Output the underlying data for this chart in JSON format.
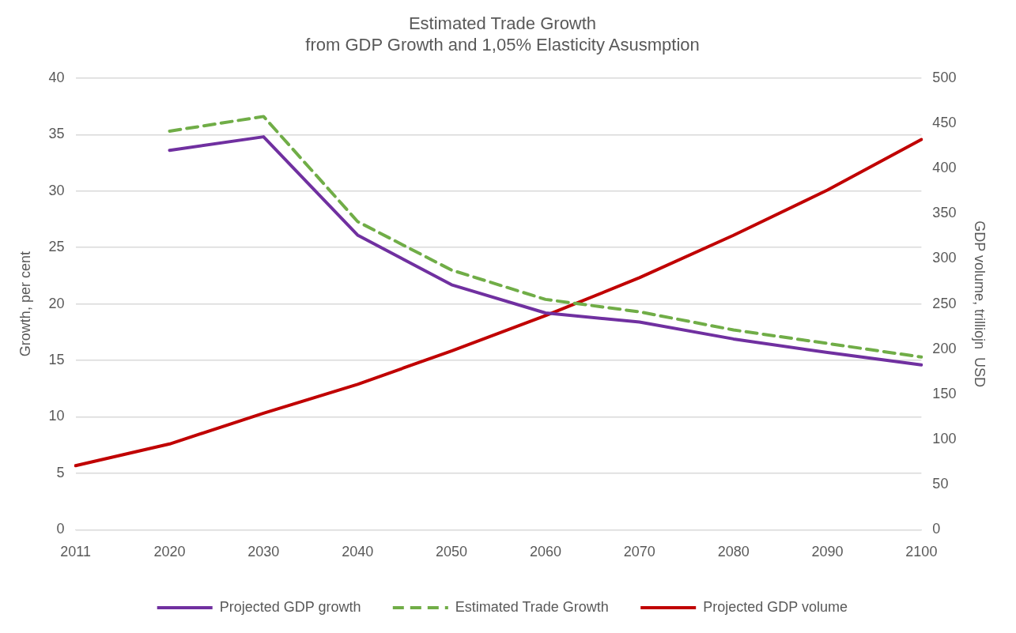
{
  "chart_data": {
    "type": "line",
    "title": "Estimated Trade Growth\nfrom GDP Growth and 1,05% Elasticity Asusmption",
    "ylabel": "Growth, per cent",
    "y2label": "GDP volume, trilliojn  USD",
    "categories": [
      "2011",
      "2020",
      "2030",
      "2040",
      "2050",
      "2060",
      "2070",
      "2080",
      "2090",
      "2100"
    ],
    "series": [
      {
        "name": "Projected GDP growth",
        "color": "#7030a0",
        "values": [
          null,
          33.6,
          34.8,
          26.1,
          21.7,
          19.2,
          18.4,
          16.9,
          15.7,
          14.6
        ]
      },
      {
        "name": "Estimated Trade Growth",
        "color": "#70ad47",
        "line_style": "dashed",
        "values": [
          null,
          35.3,
          36.6,
          27.3,
          23.0,
          20.4,
          19.3,
          17.7,
          16.5,
          15.3
        ]
      },
      {
        "name": "Projected GDP volume",
        "color": "#c00000",
        "axis": "y2",
        "values": [
          71,
          95,
          129,
          161,
          198,
          237,
          279,
          326,
          376,
          432
        ]
      }
    ],
    "ylim": [
      0,
      40
    ],
    "yticks": [
      0,
      5,
      10,
      15,
      20,
      25,
      30,
      35,
      40
    ],
    "y2lim": [
      0,
      500
    ],
    "y2ticks": [
      0,
      50,
      100,
      150,
      200,
      250,
      300,
      350,
      400,
      450,
      500
    ],
    "grid": "y",
    "legend": "bottom",
    "marker": "none"
  }
}
